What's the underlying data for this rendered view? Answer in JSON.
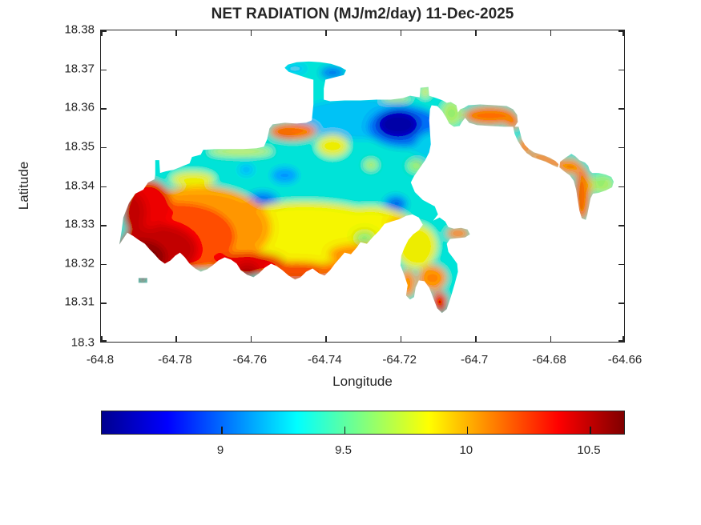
{
  "chart_data": {
    "type": "heatmap",
    "subtype": "filled-contour-map-over-island-landmask",
    "title": "NET RADIATION (MJ/m2/day) 11-Dec-2025",
    "xlabel": "Longitude",
    "ylabel": "Latitude",
    "xlim": [
      -64.8,
      -64.66
    ],
    "ylim": [
      18.3,
      18.38
    ],
    "x_ticks": [
      -64.8,
      -64.78,
      -64.76,
      -64.74,
      -64.72,
      -64.7,
      -64.68,
      -64.66
    ],
    "x_tick_labels": [
      "-64.8",
      "-64.78",
      "-64.76",
      "-64.74",
      "-64.72",
      "-64.7",
      "-64.68",
      "-64.66"
    ],
    "y_ticks": [
      18.38,
      18.37,
      18.36,
      18.35,
      18.34,
      18.33,
      18.32,
      18.31,
      18.3
    ],
    "y_tick_labels": [
      "18.38",
      "18.37",
      "18.36",
      "18.35",
      "18.34",
      "18.33",
      "18.32",
      "18.31",
      "18.3"
    ],
    "grid": false,
    "colorbar": {
      "orientation": "horizontal",
      "colormap": "jet",
      "range": [
        8.5,
        10.65
      ],
      "ticks": [
        9,
        9.5,
        10,
        10.5
      ],
      "tick_labels": [
        "9",
        "9.5",
        "10",
        "10.5"
      ]
    },
    "sampled_features": [
      {
        "lon": -64.793,
        "lat": 18.325,
        "value": 10.6,
        "desc": "dark-red maximum, southwest lobe"
      },
      {
        "lon": -64.77,
        "lat": 18.333,
        "value": 10.3,
        "desc": "red band inland of south coast"
      },
      {
        "lon": -64.721,
        "lat": 18.355,
        "value": 8.6,
        "desc": "dark-blue minimum, north-central"
      },
      {
        "lon": -64.757,
        "lat": 18.336,
        "value": 9.0,
        "desc": "blue pocket, west-central"
      },
      {
        "lon": -64.721,
        "lat": 18.335,
        "value": 9.0,
        "desc": "blue pocket, central"
      },
      {
        "lon": -64.743,
        "lat": 18.327,
        "value": 9.9,
        "desc": "yellow band across mid-south"
      },
      {
        "lon": -64.743,
        "lat": 18.37,
        "value": 9.1,
        "desc": "blue/cyan northern peninsula strip"
      },
      {
        "lon": -64.749,
        "lat": 18.353,
        "value": 10.1,
        "desc": "orange patch on north coast"
      },
      {
        "lon": -64.696,
        "lat": 18.357,
        "value": 10.1,
        "desc": "orange northeast peninsula band"
      },
      {
        "lon": -64.671,
        "lat": 18.338,
        "value": 10.1,
        "desc": "orange eastern strip"
      },
      {
        "lon": -64.666,
        "lat": 18.34,
        "value": 9.6,
        "desc": "green patch at far east tip"
      },
      {
        "lon": -64.709,
        "lat": 18.309,
        "value": 10.35,
        "desc": "red tip of southeast peninsula"
      }
    ],
    "colors": {
      "background": "#ffffff",
      "axis": "#262626",
      "base_field_cyan": "#22E4D6",
      "min_navy": "#0009A8",
      "max_maroon": "#8F0E04"
    }
  }
}
